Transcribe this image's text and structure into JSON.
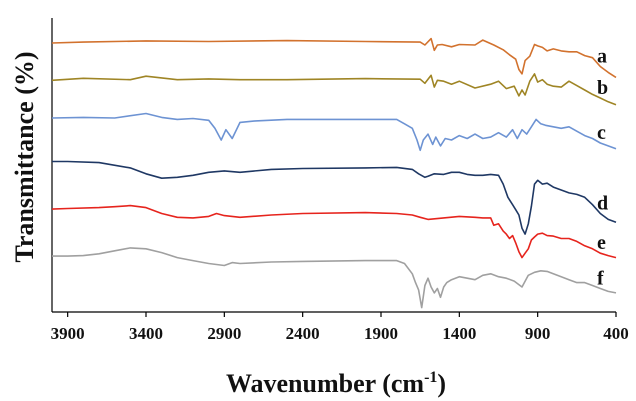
{
  "chart_data": {
    "type": "line",
    "xlabel_main": "Wavenumber (cm",
    "xlabel_sup": "-1",
    "xlabel_end": ")",
    "ylabel": "Transmittance (%)",
    "xlim": [
      4000,
      400
    ],
    "x_reversed": true,
    "xticks": [
      3900,
      3400,
      2900,
      2400,
      1900,
      1400,
      900,
      400
    ],
    "xtick_labels": [
      "3900",
      "3400",
      "2900",
      "2400",
      "1900",
      "1400",
      "900",
      "400"
    ],
    "ylim": [
      0,
      100
    ],
    "grid": false,
    "series": [
      {
        "name": "a",
        "color": "#d2722e",
        "x": [
          4000,
          3800,
          3400,
          3000,
          2500,
          2000,
          1650,
          1620,
          1580,
          1560,
          1540,
          1510,
          1450,
          1400,
          1300,
          1250,
          1180,
          1120,
          1080,
          1040,
          1020,
          1000,
          980,
          950,
          920,
          900,
          870,
          840,
          800,
          750,
          700,
          650,
          600,
          550,
          500,
          450,
          400
        ],
        "y": [
          91.5,
          91.8,
          92.2,
          92.0,
          92.3,
          92.0,
          91.8,
          90.8,
          93.0,
          89.0,
          90.8,
          91.0,
          90.2,
          91.0,
          90.8,
          92.5,
          90.8,
          89.2,
          87.5,
          86.0,
          82.5,
          81.0,
          85.5,
          87.0,
          91.0,
          90.5,
          90.0,
          88.8,
          89.5,
          88.8,
          88.5,
          88.5,
          87.2,
          86.5,
          83.5,
          81.5,
          79.8
        ]
      },
      {
        "name": "b",
        "color": "#9f8525",
        "x": [
          4000,
          3800,
          3500,
          3400,
          3200,
          3000,
          2800,
          2500,
          2000,
          1650,
          1620,
          1580,
          1560,
          1540,
          1500,
          1450,
          1400,
          1300,
          1200,
          1150,
          1100,
          1050,
          1020,
          1000,
          980,
          950,
          920,
          900,
          870,
          840,
          800,
          750,
          700,
          650,
          600,
          550,
          500,
          450,
          400
        ],
        "y": [
          78.8,
          79.5,
          79.0,
          80.2,
          79.0,
          79.3,
          79.0,
          79.0,
          79.4,
          79.2,
          77.8,
          80.5,
          76.5,
          78.8,
          78.5,
          77.5,
          78.5,
          76.2,
          77.5,
          78.5,
          76.0,
          76.8,
          73.5,
          75.5,
          73.8,
          78.5,
          81.0,
          78.2,
          79.0,
          77.5,
          76.8,
          76.5,
          78.5,
          77.0,
          75.5,
          74.0,
          72.8,
          71.5,
          70.5
        ]
      },
      {
        "name": "c",
        "color": "#6d93d3",
        "x": [
          4000,
          3800,
          3600,
          3400,
          3300,
          3200,
          3100,
          3000,
          2960,
          2920,
          2890,
          2850,
          2800,
          2700,
          2500,
          2200,
          2000,
          1800,
          1750,
          1700,
          1670,
          1650,
          1630,
          1600,
          1570,
          1550,
          1520,
          1490,
          1450,
          1400,
          1350,
          1300,
          1250,
          1200,
          1150,
          1100,
          1060,
          1030,
          1000,
          970,
          940,
          910,
          880,
          850,
          800,
          750,
          700,
          650,
          600,
          550,
          500,
          450,
          400
        ],
        "y": [
          66.0,
          66.2,
          66.0,
          67.5,
          66.2,
          65.5,
          65.8,
          65.2,
          62.5,
          58.5,
          62.0,
          59.0,
          64.5,
          65.0,
          65.5,
          65.5,
          65.5,
          65.5,
          64.0,
          62.5,
          58.5,
          55.0,
          58.5,
          60.5,
          57.0,
          59.5,
          56.5,
          59.0,
          58.5,
          60.0,
          59.0,
          60.5,
          59.0,
          59.5,
          61.0,
          59.5,
          62.0,
          59.0,
          62.0,
          60.5,
          63.0,
          65.5,
          64.0,
          63.5,
          63.0,
          62.5,
          63.0,
          61.5,
          60.0,
          59.0,
          57.5,
          56.5,
          55.5
        ]
      },
      {
        "name": "d",
        "color": "#1f3864",
        "x": [
          4000,
          3900,
          3700,
          3500,
          3400,
          3300,
          3200,
          3100,
          3000,
          2900,
          2800,
          2600,
          2400,
          2000,
          1800,
          1700,
          1660,
          1620,
          1600,
          1560,
          1500,
          1450,
          1400,
          1350,
          1300,
          1250,
          1200,
          1150,
          1120,
          1090,
          1060,
          1040,
          1020,
          1000,
          980,
          960,
          940,
          920,
          900,
          870,
          840,
          800,
          750,
          700,
          650,
          600,
          550,
          500,
          450,
          400
        ],
        "y": [
          51.2,
          51.2,
          50.8,
          49.0,
          47.0,
          45.5,
          45.8,
          46.5,
          47.5,
          48.0,
          47.5,
          48.5,
          48.8,
          49.0,
          49.2,
          48.5,
          47.0,
          45.8,
          46.2,
          47.0,
          46.8,
          47.5,
          47.5,
          46.8,
          46.5,
          46.5,
          46.8,
          46.5,
          43.5,
          39.0,
          36.5,
          34.8,
          33.0,
          28.5,
          26.5,
          30.0,
          36.0,
          43.5,
          44.8,
          43.5,
          43.8,
          42.5,
          41.5,
          40.5,
          40.0,
          39.0,
          36.5,
          33.5,
          31.5,
          30.5
        ]
      },
      {
        "name": "e",
        "color": "#e6241d",
        "x": [
          4000,
          3900,
          3700,
          3600,
          3500,
          3400,
          3300,
          3200,
          3100,
          3000,
          2950,
          2900,
          2800,
          2600,
          2400,
          2000,
          1800,
          1700,
          1650,
          1600,
          1500,
          1400,
          1300,
          1250,
          1200,
          1180,
          1150,
          1120,
          1100,
          1080,
          1060,
          1040,
          1020,
          1000,
          980,
          960,
          940,
          920,
          900,
          870,
          840,
          800,
          750,
          700,
          650,
          600,
          550,
          500,
          450,
          400
        ],
        "y": [
          35.0,
          35.2,
          35.5,
          35.8,
          36.2,
          35.5,
          33.5,
          32.2,
          32.0,
          32.5,
          33.5,
          32.8,
          32.2,
          33.0,
          33.5,
          33.8,
          33.5,
          33.0,
          32.2,
          31.5,
          32.0,
          32.5,
          32.2,
          32.0,
          32.0,
          29.5,
          30.0,
          27.5,
          26.5,
          25.0,
          26.0,
          23.5,
          20.5,
          18.5,
          20.0,
          21.5,
          24.5,
          25.5,
          26.5,
          26.8,
          26.0,
          25.8,
          25.0,
          25.0,
          24.0,
          22.5,
          21.5,
          20.0,
          19.2,
          18.5
        ]
      },
      {
        "name": "f",
        "color": "#a0a0a0",
        "x": [
          4000,
          3900,
          3800,
          3700,
          3600,
          3500,
          3400,
          3300,
          3200,
          3100,
          3000,
          2900,
          2850,
          2800,
          2600,
          2400,
          2000,
          1800,
          1750,
          1700,
          1680,
          1660,
          1640,
          1620,
          1600,
          1580,
          1560,
          1540,
          1520,
          1500,
          1480,
          1450,
          1400,
          1350,
          1300,
          1250,
          1200,
          1150,
          1100,
          1050,
          1000,
          960,
          920,
          880,
          840,
          800,
          750,
          700,
          650,
          600,
          550,
          500,
          450,
          400
        ],
        "y": [
          19.0,
          19.0,
          19.2,
          19.8,
          20.8,
          21.8,
          21.5,
          20.2,
          18.5,
          17.5,
          16.5,
          15.8,
          16.8,
          16.5,
          17.0,
          17.2,
          17.5,
          17.5,
          16.5,
          13.0,
          10.0,
          7.5,
          1.5,
          9.0,
          11.5,
          8.5,
          6.5,
          8.0,
          5.0,
          8.5,
          10.0,
          11.0,
          12.0,
          11.5,
          11.0,
          12.5,
          13.0,
          12.0,
          11.5,
          10.5,
          8.5,
          12.5,
          13.5,
          14.0,
          13.8,
          13.0,
          12.0,
          11.0,
          10.0,
          10.0,
          9.0,
          8.0,
          7.0,
          6.5
        ]
      }
    ]
  }
}
